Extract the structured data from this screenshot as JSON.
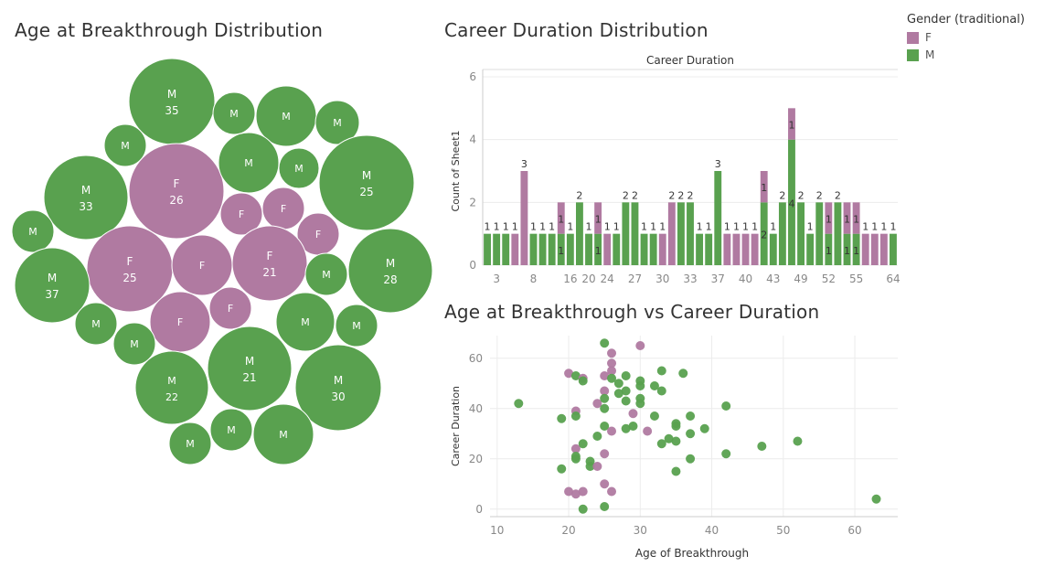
{
  "colors": {
    "F": "#b07aa1",
    "M": "#59a14f"
  },
  "legend": {
    "title": "Gender (traditional)",
    "items": [
      {
        "label": "F",
        "key": "F"
      },
      {
        "label": "M",
        "key": "M"
      }
    ]
  },
  "chart_data": [
    {
      "type": "bubble",
      "title": "Age at Breakthrough Distribution",
      "bubbles": [
        {
          "gender": "M",
          "value": 35
        },
        {
          "gender": "M",
          "value": null
        },
        {
          "gender": "M",
          "value": null
        },
        {
          "gender": "M",
          "value": null
        },
        {
          "gender": "M",
          "value": null
        },
        {
          "gender": "M",
          "value": 33
        },
        {
          "gender": "F",
          "value": 26
        },
        {
          "gender": "M",
          "value": null
        },
        {
          "gender": "M",
          "value": null
        },
        {
          "gender": "M",
          "value": 25
        },
        {
          "gender": "F",
          "value": null
        },
        {
          "gender": "F",
          "value": null
        },
        {
          "gender": "M",
          "value": null
        },
        {
          "gender": "F",
          "value": null
        },
        {
          "gender": "F",
          "value": 25
        },
        {
          "gender": "F",
          "value": null
        },
        {
          "gender": "F",
          "value": 21
        },
        {
          "gender": "M",
          "value": 28
        },
        {
          "gender": "M",
          "value": 37
        },
        {
          "gender": "M",
          "value": null
        },
        {
          "gender": "M",
          "value": null
        },
        {
          "gender": "F",
          "value": null
        },
        {
          "gender": "F",
          "value": null
        },
        {
          "gender": "M",
          "value": null
        },
        {
          "gender": "M",
          "value": null
        },
        {
          "gender": "M",
          "value": null
        },
        {
          "gender": "M",
          "value": 22
        },
        {
          "gender": "M",
          "value": 21
        },
        {
          "gender": "M",
          "value": 30
        },
        {
          "gender": "M",
          "value": null
        },
        {
          "gender": "M",
          "value": null
        },
        {
          "gender": "M",
          "value": null
        }
      ]
    },
    {
      "type": "bar",
      "stacked": true,
      "title": "Career Duration Distribution",
      "header": "Career Duration",
      "ylabel": "Count of Sheet1",
      "ylim": [
        0,
        6
      ],
      "yticks": [
        0,
        2,
        4,
        6
      ],
      "xtick_labels": [
        "3",
        "8",
        "16",
        "20",
        "24",
        "27",
        "30",
        "33",
        "37",
        "40",
        "43",
        "49",
        "52",
        "55",
        "64"
      ],
      "bars": [
        {
          "m": 1,
          "f": 0,
          "labels": [
            "1"
          ]
        },
        {
          "m": 1,
          "f": 0,
          "labels": [
            "1"
          ]
        },
        {
          "m": 1,
          "f": 0,
          "labels": [
            "1"
          ]
        },
        {
          "m": 0,
          "f": 1,
          "labels": [
            "1"
          ]
        },
        {
          "m": 0,
          "f": 3,
          "labels": [
            "3"
          ]
        },
        {
          "m": 1,
          "f": 0,
          "labels": [
            "1"
          ]
        },
        {
          "m": 1,
          "f": 0,
          "labels": [
            "1"
          ]
        },
        {
          "m": 1,
          "f": 0,
          "labels": [
            "1"
          ]
        },
        {
          "m": 1,
          "f": 1,
          "labels": [
            "1",
            "1"
          ]
        },
        {
          "m": 1,
          "f": 0,
          "labels": [
            "1"
          ]
        },
        {
          "m": 2,
          "f": 0,
          "labels": [
            "2"
          ]
        },
        {
          "m": 1,
          "f": 0,
          "labels": [
            "1"
          ]
        },
        {
          "m": 1,
          "f": 1,
          "labels": [
            "1",
            "1"
          ]
        },
        {
          "m": 0,
          "f": 1,
          "labels": [
            "1"
          ]
        },
        {
          "m": 1,
          "f": 0,
          "labels": [
            "1"
          ]
        },
        {
          "m": 2,
          "f": 0,
          "labels": [
            "2"
          ]
        },
        {
          "m": 2,
          "f": 0,
          "labels": [
            "2"
          ]
        },
        {
          "m": 1,
          "f": 0,
          "labels": [
            "1"
          ]
        },
        {
          "m": 1,
          "f": 0,
          "labels": [
            "1"
          ]
        },
        {
          "m": 0,
          "f": 1,
          "labels": [
            "1"
          ]
        },
        {
          "m": 0,
          "f": 2,
          "labels": [
            "2"
          ]
        },
        {
          "m": 2,
          "f": 0,
          "labels": [
            "2"
          ]
        },
        {
          "m": 2,
          "f": 0,
          "labels": [
            "2"
          ]
        },
        {
          "m": 1,
          "f": 0,
          "labels": [
            "1"
          ]
        },
        {
          "m": 1,
          "f": 0,
          "labels": [
            "1"
          ]
        },
        {
          "m": 3,
          "f": 0,
          "labels": [
            "3"
          ]
        },
        {
          "m": 0,
          "f": 1,
          "labels": [
            "1"
          ]
        },
        {
          "m": 0,
          "f": 1,
          "labels": [
            "1"
          ]
        },
        {
          "m": 0,
          "f": 1,
          "labels": [
            "1"
          ]
        },
        {
          "m": 0,
          "f": 1,
          "labels": [
            "1"
          ]
        },
        {
          "m": 2,
          "f": 1,
          "labels": [
            "2",
            "1"
          ]
        },
        {
          "m": 1,
          "f": 0,
          "labels": [
            "1"
          ]
        },
        {
          "m": 2,
          "f": 0,
          "labels": [
            "2"
          ]
        },
        {
          "m": 4,
          "f": 1,
          "labels": [
            "4",
            "1"
          ]
        },
        {
          "m": 2,
          "f": 0,
          "labels": [
            "2"
          ]
        },
        {
          "m": 1,
          "f": 0,
          "labels": [
            "1"
          ]
        },
        {
          "m": 2,
          "f": 0,
          "labels": [
            "2"
          ]
        },
        {
          "m": 1,
          "f": 1,
          "labels": [
            "1",
            "1"
          ]
        },
        {
          "m": 2,
          "f": 0,
          "labels": [
            "2"
          ]
        },
        {
          "m": 1,
          "f": 1,
          "labels": [
            "1",
            "1"
          ]
        },
        {
          "m": 1,
          "f": 1,
          "labels": [
            "1",
            "1"
          ]
        },
        {
          "m": 0,
          "f": 1,
          "labels": [
            "1"
          ]
        },
        {
          "m": 0,
          "f": 1,
          "labels": [
            "1"
          ]
        },
        {
          "m": 0,
          "f": 1,
          "labels": [
            "1"
          ]
        },
        {
          "m": 1,
          "f": 0,
          "labels": [
            "1"
          ]
        }
      ]
    },
    {
      "type": "scatter",
      "title": "Age at Breakthrough vs Career Duration",
      "xlabel": "Age of Breakthrough",
      "ylabel": "Career Duration",
      "xlim": [
        9,
        66
      ],
      "ylim": [
        -3,
        69
      ],
      "xticks": [
        10,
        20,
        30,
        40,
        50,
        60
      ],
      "yticks": [
        0,
        20,
        40,
        60
      ],
      "points": [
        [
          13,
          42,
          "M"
        ],
        [
          19,
          36,
          "M"
        ],
        [
          19,
          16,
          "M"
        ],
        [
          20,
          54,
          "F"
        ],
        [
          20,
          7,
          "F"
        ],
        [
          21,
          53,
          "M"
        ],
        [
          21,
          39,
          "F"
        ],
        [
          21,
          37,
          "M"
        ],
        [
          21,
          24,
          "F"
        ],
        [
          21,
          21,
          "M"
        ],
        [
          21,
          20,
          "M"
        ],
        [
          21,
          6,
          "F"
        ],
        [
          22,
          52,
          "F"
        ],
        [
          22,
          51,
          "M"
        ],
        [
          22,
          26,
          "M"
        ],
        [
          22,
          7,
          "F"
        ],
        [
          22,
          0,
          "M"
        ],
        [
          23,
          19,
          "M"
        ],
        [
          23,
          17,
          "M"
        ],
        [
          24,
          42,
          "F"
        ],
        [
          24,
          29,
          "M"
        ],
        [
          24,
          17,
          "F"
        ],
        [
          25,
          66,
          "M"
        ],
        [
          25,
          53,
          "F"
        ],
        [
          25,
          47,
          "F"
        ],
        [
          25,
          44,
          "M"
        ],
        [
          25,
          40,
          "M"
        ],
        [
          25,
          33,
          "M"
        ],
        [
          25,
          22,
          "F"
        ],
        [
          25,
          10,
          "F"
        ],
        [
          25,
          1,
          "M"
        ],
        [
          26,
          62,
          "F"
        ],
        [
          26,
          58,
          "F"
        ],
        [
          26,
          55,
          "F"
        ],
        [
          26,
          52,
          "M"
        ],
        [
          26,
          31,
          "F"
        ],
        [
          26,
          7,
          "F"
        ],
        [
          27,
          50,
          "M"
        ],
        [
          27,
          46,
          "M"
        ],
        [
          28,
          53,
          "M"
        ],
        [
          28,
          47,
          "M"
        ],
        [
          28,
          43,
          "M"
        ],
        [
          28,
          32,
          "M"
        ],
        [
          29,
          38,
          "F"
        ],
        [
          29,
          33,
          "M"
        ],
        [
          30,
          65,
          "F"
        ],
        [
          30,
          51,
          "M"
        ],
        [
          30,
          49,
          "M"
        ],
        [
          30,
          44,
          "M"
        ],
        [
          30,
          42,
          "M"
        ],
        [
          31,
          31,
          "F"
        ],
        [
          32,
          49,
          "M"
        ],
        [
          32,
          37,
          "M"
        ],
        [
          33,
          55,
          "M"
        ],
        [
          33,
          47,
          "M"
        ],
        [
          33,
          26,
          "M"
        ],
        [
          34,
          28,
          "M"
        ],
        [
          35,
          34,
          "M"
        ],
        [
          35,
          33,
          "M"
        ],
        [
          35,
          27,
          "M"
        ],
        [
          35,
          15,
          "M"
        ],
        [
          36,
          54,
          "M"
        ],
        [
          37,
          37,
          "M"
        ],
        [
          37,
          30,
          "M"
        ],
        [
          37,
          20,
          "M"
        ],
        [
          39,
          32,
          "M"
        ],
        [
          42,
          41,
          "M"
        ],
        [
          42,
          22,
          "M"
        ],
        [
          47,
          25,
          "M"
        ],
        [
          52,
          27,
          "M"
        ],
        [
          63,
          4,
          "M"
        ]
      ]
    }
  ]
}
